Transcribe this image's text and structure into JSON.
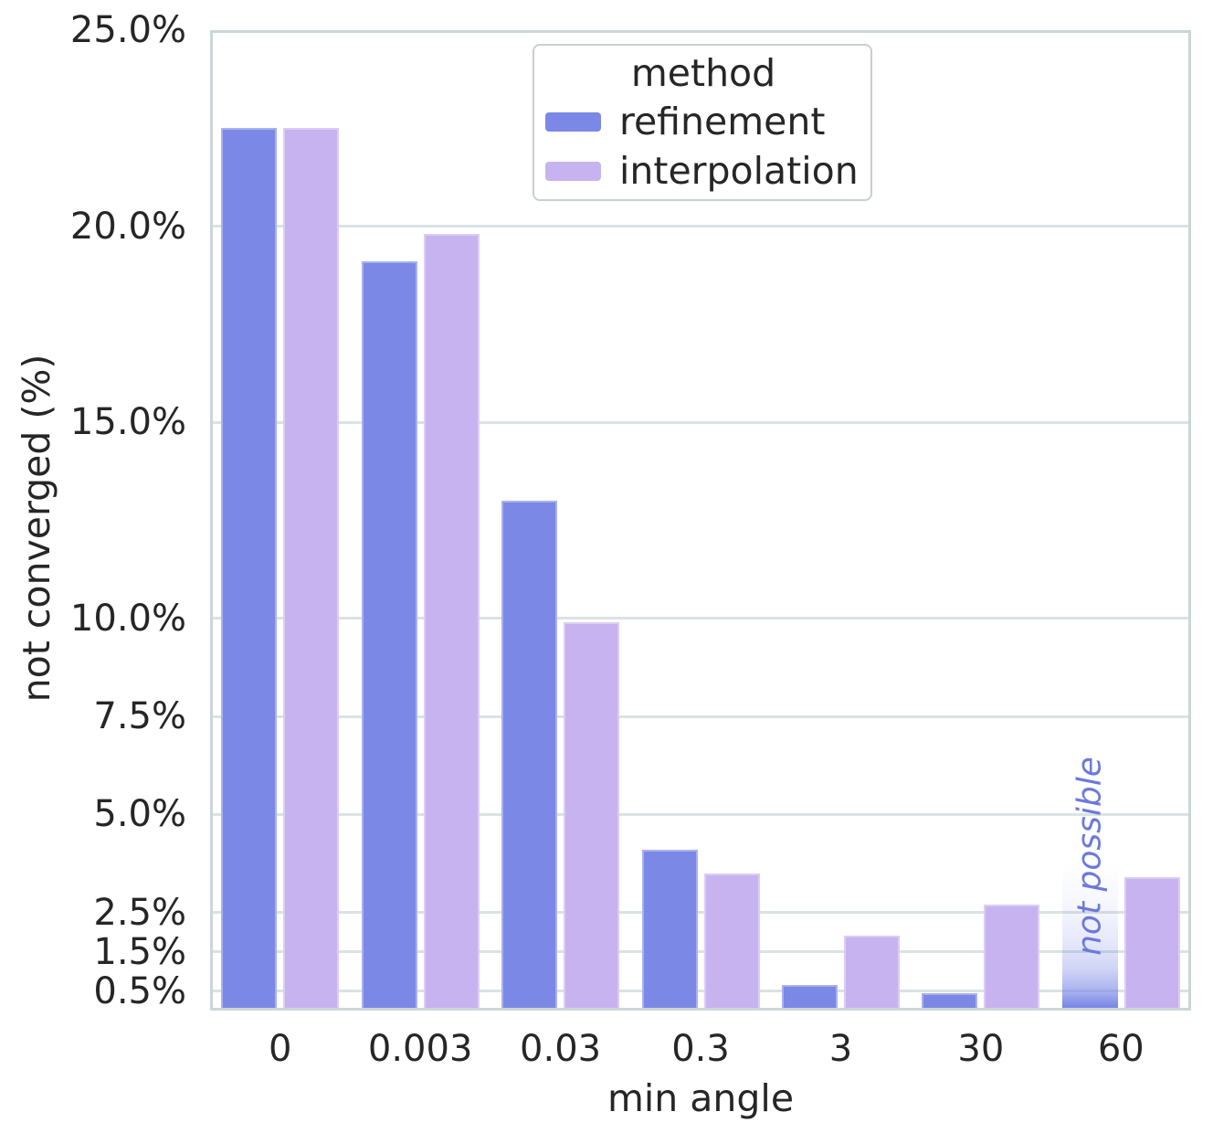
{
  "chart_data": {
    "type": "bar",
    "title": "",
    "xlabel": "min angle",
    "ylabel": "not converged (%)",
    "categories": [
      "0",
      "0.003",
      "0.03",
      "0.3",
      "3",
      "30",
      "60"
    ],
    "series": [
      {
        "name": "refinement",
        "color": "#7b88e6",
        "values": [
          22.5,
          19.1,
          13.0,
          4.1,
          0.65,
          0.45,
          null
        ]
      },
      {
        "name": "interpolation",
        "color": "#c7b3f0",
        "values": [
          22.5,
          19.8,
          9.9,
          3.5,
          1.9,
          2.7,
          3.4
        ]
      }
    ],
    "ylim": [
      0,
      25
    ],
    "yticks": [
      {
        "value": 25.0,
        "label": "25.0%"
      },
      {
        "value": 20.0,
        "label": "20.0%"
      },
      {
        "value": 15.0,
        "label": "15.0%"
      },
      {
        "value": 10.0,
        "label": "10.0%"
      },
      {
        "value": 7.5,
        "label": "7.5%"
      },
      {
        "value": 5.0,
        "label": "5.0%"
      },
      {
        "value": 2.5,
        "label": "2.5%"
      },
      {
        "value": 1.5,
        "label": "1.5%"
      },
      {
        "value": 0.5,
        "label": "0.5%"
      }
    ],
    "grid": true,
    "legend": {
      "title": "method",
      "position": "upper center"
    },
    "annotation": {
      "text": "not possible",
      "category": "60",
      "series": "refinement",
      "color": "#6b79dd",
      "gradient_fade": true
    },
    "colors": {
      "grid": "#dae3e3",
      "spine": "#ccd6d6",
      "text": "#262626",
      "background": "#ffffff"
    }
  }
}
